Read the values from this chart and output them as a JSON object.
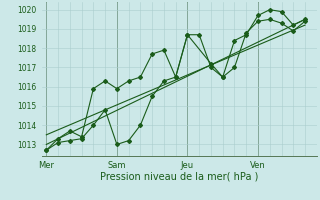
{
  "bg_color": "#cce8e8",
  "grid_color": "#aacece",
  "line_color": "#1a5c1a",
  "xlabel": "Pression niveau de la mer( hPa )",
  "ylim": [
    1012.4,
    1020.4
  ],
  "yticks": [
    1013,
    1014,
    1015,
    1016,
    1017,
    1018,
    1019,
    1020
  ],
  "day_labels": [
    "Mer",
    "Sam",
    "Jeu",
    "Ven"
  ],
  "day_positions": [
    0,
    30,
    60,
    90
  ],
  "xlim": [
    -2,
    115
  ],
  "series1_x": [
    0,
    5,
    10,
    15,
    20,
    25,
    30,
    35,
    40,
    45,
    50,
    55,
    60,
    65,
    70,
    75,
    80,
    85,
    90,
    95,
    100,
    105,
    110
  ],
  "series1_y": [
    1012.7,
    1013.3,
    1013.7,
    1013.4,
    1015.9,
    1016.3,
    1015.9,
    1016.3,
    1016.5,
    1017.7,
    1017.9,
    1016.5,
    1018.7,
    1018.7,
    1017.0,
    1016.5,
    1018.4,
    1018.7,
    1019.7,
    1020.0,
    1019.9,
    1019.2,
    1019.5
  ],
  "series2_x": [
    0,
    5,
    10,
    15,
    20,
    25,
    30,
    35,
    40,
    45,
    50,
    55,
    60,
    70,
    75,
    80,
    85,
    90,
    95,
    100,
    105,
    110
  ],
  "series2_y": [
    1012.7,
    1013.1,
    1013.2,
    1013.3,
    1014.0,
    1014.8,
    1013.0,
    1013.2,
    1014.0,
    1015.5,
    1016.3,
    1016.5,
    1018.7,
    1017.2,
    1016.5,
    1017.0,
    1018.8,
    1019.4,
    1019.5,
    1019.3,
    1018.9,
    1019.4
  ],
  "trend1_x": [
    0,
    110
  ],
  "trend1_y": [
    1013.0,
    1019.5
  ],
  "trend2_x": [
    0,
    110
  ],
  "trend2_y": [
    1013.5,
    1019.2
  ],
  "vline_positions": [
    0,
    30,
    60,
    90
  ],
  "figsize": [
    3.2,
    2.0
  ],
  "dpi": 100
}
